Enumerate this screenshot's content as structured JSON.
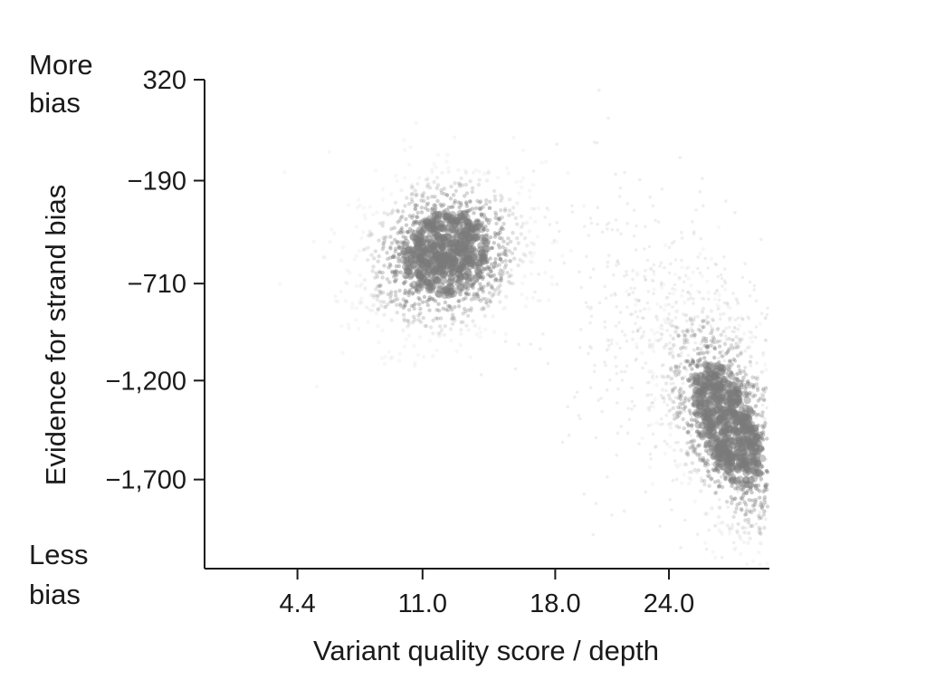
{
  "chart_data": {
    "type": "scatter",
    "title": "",
    "xlabel": "Variant quality score / depth",
    "ylabel": "Evidence for strand bias",
    "x_ticks": [
      4.4,
      11.0,
      18.0,
      24.0
    ],
    "x_tick_labels": [
      "4.4",
      "11.0",
      "18.0",
      "24.0"
    ],
    "y_ticks": [
      320,
      -190,
      -710,
      -1200,
      -1700
    ],
    "y_tick_labels": [
      "320",
      "−190",
      "−710",
      "−1,200",
      "−1,700"
    ],
    "xlim": [
      -0.5,
      29.3
    ],
    "ylim": [
      -2150,
      320
    ],
    "grid": false,
    "legend": "none",
    "annotations": {
      "top": [
        "More",
        "bias"
      ],
      "bottom": [
        "Less",
        "bias"
      ]
    },
    "point_color": "#7a7a7a",
    "clusters": [
      {
        "center_x": 12.2,
        "center_y": -560,
        "spread_x": 2.4,
        "spread_y": 200,
        "tilt": -0.7,
        "density": "high"
      },
      {
        "center_x": 27.1,
        "center_y": -1420,
        "spread_x": 1.5,
        "spread_y": 330,
        "tilt": -0.35,
        "density": "high"
      },
      {
        "center_x": 25.0,
        "center_y": -1080,
        "spread_x": 3.0,
        "spread_y": 450,
        "tilt": -0.5,
        "density": "low"
      }
    ]
  }
}
